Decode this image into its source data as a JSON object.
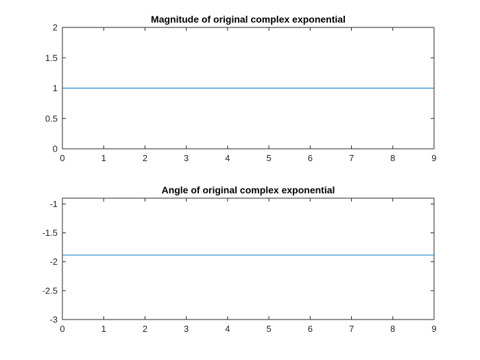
{
  "chart_data": [
    {
      "type": "line",
      "title": "Magnitude of original complex exponential",
      "xlabel": "",
      "ylabel": "",
      "xlim": [
        0,
        9
      ],
      "ylim": [
        0,
        2
      ],
      "xticks": [
        0,
        1,
        2,
        3,
        4,
        5,
        6,
        7,
        8,
        9
      ],
      "yticks": [
        0,
        0.5,
        1,
        1.5,
        2
      ],
      "grid": false,
      "line_color": "#0072BD",
      "series": [
        {
          "x": [
            0,
            9
          ],
          "y": [
            1,
            1
          ]
        }
      ]
    },
    {
      "type": "line",
      "title": "Angle of original complex exponential",
      "xlabel": "",
      "ylabel": "",
      "xlim": [
        0,
        9
      ],
      "ylim": [
        -3,
        -0.9
      ],
      "xticks": [
        0,
        1,
        2,
        3,
        4,
        5,
        6,
        7,
        8,
        9
      ],
      "yticks": [
        -3,
        -2.5,
        -2,
        -1.5,
        -1
      ],
      "grid": false,
      "line_color": "#0072BD",
      "series": [
        {
          "x": [
            0,
            9
          ],
          "y": [
            -1.885,
            -1.885
          ]
        }
      ]
    }
  ]
}
